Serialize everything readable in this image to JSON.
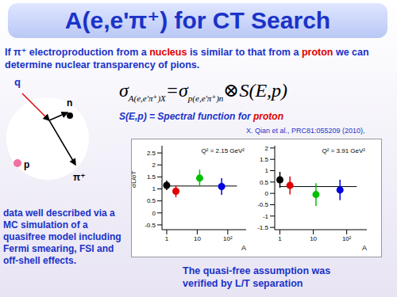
{
  "title": "A(e,e'π⁺) for CT Search",
  "intro": {
    "text": "If π⁺ electroproduction from a nucleus is similar to that from a proton we can determine nuclear transparency of pions.",
    "highlight": [
      "nucleus",
      "proton"
    ]
  },
  "formula": {
    "lhs": "σ",
    "lhs_sub": "A(e,e'π⁺)X",
    "eq": "=",
    "rhs": "σ",
    "rhs_sub": "p(e,e'π⁺)n",
    "op": "⊗S(E,p)"
  },
  "spectral": {
    "text": "S(E,p) = Spectral function for proton",
    "highlight": [
      "proton"
    ]
  },
  "diagram": {
    "q": "q",
    "n": "n",
    "p": "p",
    "pi": "π⁺"
  },
  "citation": "X. Qian et al., PRC81:055209 (2010),",
  "left_note": "data well described via a MC simulation of a quasifree model including Fermi smearing, FSI and off-shell effects.",
  "bottom_note": "The quasi-free assumption was verified by L/T separation",
  "chart_data": [
    {
      "type": "scatter",
      "title": "Q² = 2.15 GeV²",
      "x_label": "A",
      "y_label": "σL/σT",
      "log": "x",
      "xlim": [
        0.7,
        400
      ],
      "xticks": [
        1,
        10,
        {
          "value": 100,
          "label": "10²"
        }
      ],
      "ylim": [
        -0.7,
        2.8
      ],
      "yticks": [
        -0.5,
        0,
        0.5,
        1,
        1.5,
        2,
        2.5
      ],
      "points": {
        "x": [
          1,
          2,
          12,
          63
        ],
        "values": [
          1.15,
          0.9,
          1.45,
          1.1
        ],
        "errors": [
          0.2,
          0.25,
          0.35,
          0.35
        ],
        "colors": [
          "#000000",
          "#e00000",
          "#00c000",
          "#0000e0"
        ]
      },
      "fit": {
        "x": [
          1,
          200
        ],
        "values": [
          1.12,
          1.12
        ]
      }
    },
    {
      "type": "scatter",
      "title": "Q² = 3.91 GeV²",
      "x_label": "A",
      "log": "x",
      "xlim": [
        0.7,
        400
      ],
      "xticks": [
        1,
        10,
        {
          "value": 100,
          "label": "10²"
        }
      ],
      "ylim": [
        -1.6,
        2.1
      ],
      "yticks": [
        -1.5,
        -1,
        -0.5,
        0,
        0.5,
        1,
        1.5,
        2
      ],
      "points": {
        "x": [
          1,
          2,
          12,
          63
        ],
        "values": [
          0.6,
          0.35,
          -0.05,
          0.15
        ],
        "errors": [
          0.35,
          0.4,
          0.5,
          0.45
        ],
        "colors": [
          "#000000",
          "#e00000",
          "#00c000",
          "#0000e0"
        ]
      },
      "fit": {
        "x": [
          1,
          200
        ],
        "values": [
          0.3,
          0.3
        ]
      }
    }
  ]
}
